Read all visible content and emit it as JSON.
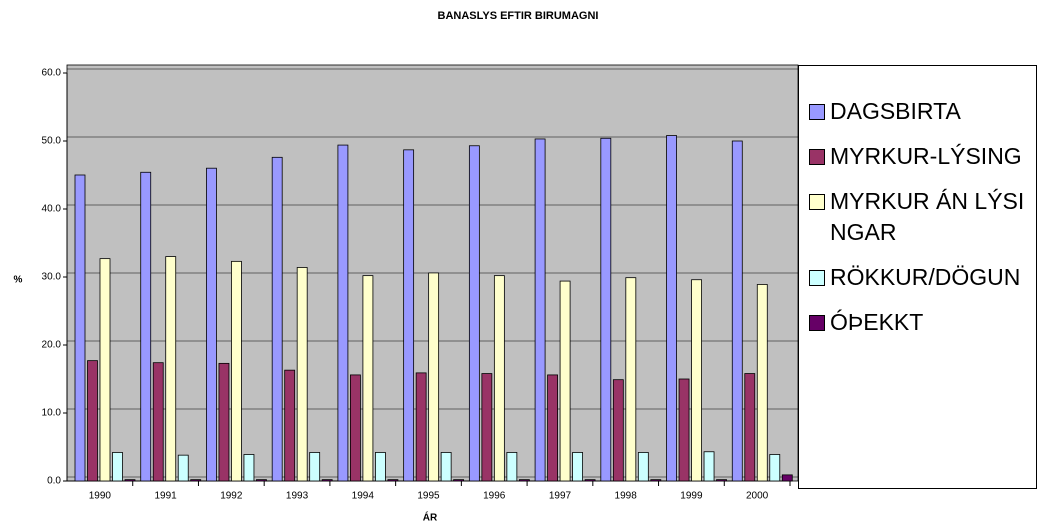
{
  "chart_data": {
    "type": "bar",
    "title": "BANASLYS EFTIR BIRUMAGNI",
    "x_label": "ÁR",
    "y_label": "%",
    "categories": [
      "1990",
      "1991",
      "1992",
      "1993",
      "1994",
      "1995",
      "1996",
      "1997",
      "1998",
      "1999",
      "2000"
    ],
    "series": [
      {
        "name": "DAGSBIRTA",
        "color": "#9999ff",
        "values": [
          45.0,
          45.4,
          46.0,
          47.6,
          49.4,
          48.7,
          49.3,
          50.3,
          50.4,
          50.8,
          50.0
        ]
      },
      {
        "name": "MYRKUR-LÝSING",
        "color": "#993366",
        "values": [
          17.7,
          17.4,
          17.3,
          16.3,
          15.6,
          15.9,
          15.8,
          15.6,
          14.9,
          15.0,
          15.8
        ]
      },
      {
        "name": "MYRKUR ÁN LÝSINGAR",
        "color": "#ffffcc",
        "values": [
          32.7,
          33.0,
          32.3,
          31.4,
          30.2,
          30.6,
          30.2,
          29.4,
          29.9,
          29.6,
          28.9
        ]
      },
      {
        "name": "RÖKKUR/DÖGUN",
        "color": "#ccffff",
        "values": [
          4.2,
          3.8,
          3.9,
          4.2,
          4.2,
          4.2,
          4.2,
          4.2,
          4.2,
          4.3,
          3.9
        ]
      },
      {
        "name": "ÓÞEKKT",
        "color": "#660066",
        "values": [
          0.2,
          0.2,
          0.2,
          0.2,
          0.2,
          0.2,
          0.2,
          0.2,
          0.2,
          0.2,
          0.9
        ]
      }
    ],
    "ylim": [
      0,
      60
    ],
    "yticks": [
      {
        "value": 0,
        "label": "0.0"
      },
      {
        "value": 10,
        "label": "10.0"
      },
      {
        "value": 20,
        "label": "20.0"
      },
      {
        "value": 30,
        "label": "30.0"
      },
      {
        "value": 40,
        "label": "40.0"
      },
      {
        "value": 50,
        "label": "50.0"
      },
      {
        "value": 60,
        "label": "60.0"
      }
    ],
    "grid": true,
    "plot_background": "#c0c0c0",
    "legend": "right"
  }
}
